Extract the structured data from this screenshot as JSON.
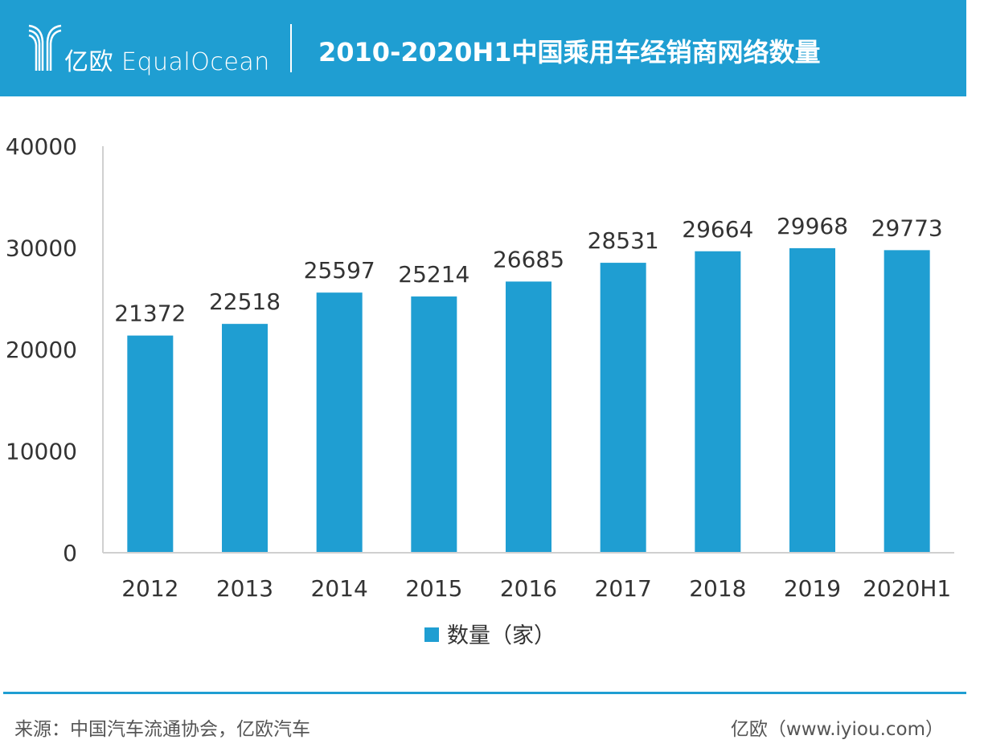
{
  "header": {
    "logo_text": "亿欧 EqualOcean",
    "title": "2010-2020H1中国乘用车经销商网络数量"
  },
  "colors": {
    "brand": "#1f9ed2",
    "bar": "#1f9ed2"
  },
  "chart_data": {
    "type": "bar",
    "title": "2010-2020H1中国乘用车经销商网络数量",
    "categories": [
      "2012",
      "2013",
      "2014",
      "2015",
      "2016",
      "2017",
      "2018",
      "2019",
      "2020H1"
    ],
    "series": [
      {
        "name": "数量（家）",
        "values": [
          21372,
          22518,
          25597,
          25214,
          26685,
          28531,
          29664,
          29968,
          29773
        ]
      }
    ],
    "yticks": [
      0,
      10000,
      20000,
      30000,
      40000
    ],
    "ylim": [
      0,
      40000
    ],
    "xlabel": "",
    "ylabel": "",
    "grid": false,
    "legend": "bottom-center"
  },
  "footer": {
    "source": "来源：中国汽车流通协会，亿欧汽车",
    "credit": "亿欧（www.iyiou.com）"
  }
}
